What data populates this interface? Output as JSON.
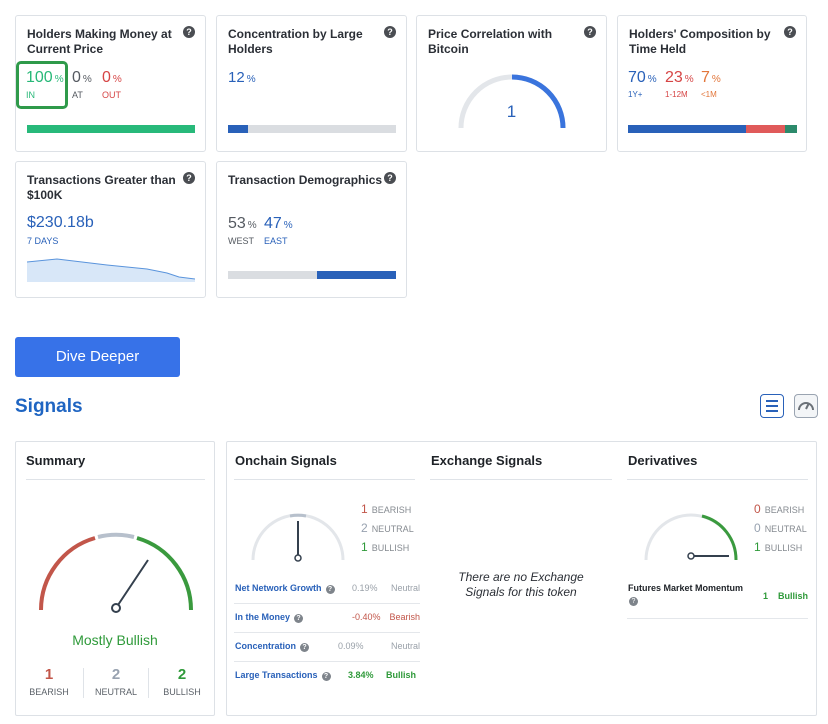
{
  "cards": {
    "holders_money": {
      "title": "Holders Making Money at Current Price",
      "in_value": "100",
      "in_unit": "%",
      "in_label": "IN",
      "at_value": "0",
      "at_unit": "%",
      "at_label": "AT",
      "out_value": "0",
      "out_unit": "%",
      "out_label": "OUT"
    },
    "concentration": {
      "title": "Concentration by Large Holders",
      "value": "12",
      "unit": "%",
      "fill": 0.12
    },
    "btc_correlation": {
      "title": "Price Correlation with Bitcoin",
      "value": "1"
    },
    "composition": {
      "title": "Holders' Composition by Time Held",
      "items": [
        {
          "value": "70",
          "unit": "%",
          "label": "1Y+",
          "share": 0.7,
          "color": "#2961b9"
        },
        {
          "value": "23",
          "unit": "%",
          "label": "1-12M",
          "share": 0.23,
          "color": "#e05a5a"
        },
        {
          "value": "7",
          "unit": "%",
          "label": "<1M",
          "share": 0.07,
          "color": "#2c8a6b"
        }
      ]
    },
    "large_tx": {
      "title": "Transactions Greater than $100K",
      "value": "$230.18b",
      "label": "7 DAYS"
    },
    "demographics": {
      "title": "Transaction Demographics",
      "west_value": "53",
      "west_unit": "%",
      "west_label": "WEST",
      "west_share": 0.53,
      "east_value": "47",
      "east_unit": "%",
      "east_label": "EAST",
      "east_share": 0.47
    }
  },
  "actions": {
    "dive_deeper": "Dive Deeper"
  },
  "signals": {
    "title": "Signals",
    "list_view_icon": "list-icon",
    "gauge_view_icon": "speedometer-icon",
    "summary": {
      "title": "Summary",
      "verdict": "Mostly Bullish",
      "bearish_count": "1",
      "bearish_label": "BEARISH",
      "neutral_count": "2",
      "neutral_label": "NEUTRAL",
      "bullish_count": "2",
      "bullish_label": "BULLISH"
    },
    "onchain": {
      "title": "Onchain Signals",
      "bearish_count": "1",
      "bearish_label": "BEARISH",
      "neutral_count": "2",
      "neutral_label": "NEUTRAL",
      "bullish_count": "1",
      "bullish_label": "BULLISH",
      "rows": [
        {
          "label": "Net Network Growth",
          "value": "0.19%",
          "status": "Neutral"
        },
        {
          "label": "In the Money",
          "value": "-0.40%",
          "status": "Bearish"
        },
        {
          "label": "Concentration",
          "value": "0.09%",
          "status": "Neutral"
        },
        {
          "label": "Large Transactions",
          "value": "3.84%",
          "status": "Bullish"
        }
      ]
    },
    "exchange": {
      "title": "Exchange Signals",
      "empty_message": "There are no Exchange Signals for this token"
    },
    "derivatives": {
      "title": "Derivatives",
      "bearish_count": "0",
      "bearish_label": "BEARISH",
      "neutral_count": "0",
      "neutral_label": "NEUTRAL",
      "bullish_count": "1",
      "bullish_label": "BULLISH",
      "row_label": "Futures Market Momentum",
      "row_value": "1",
      "row_status": "Bullish"
    }
  },
  "help_glyph": "?"
}
